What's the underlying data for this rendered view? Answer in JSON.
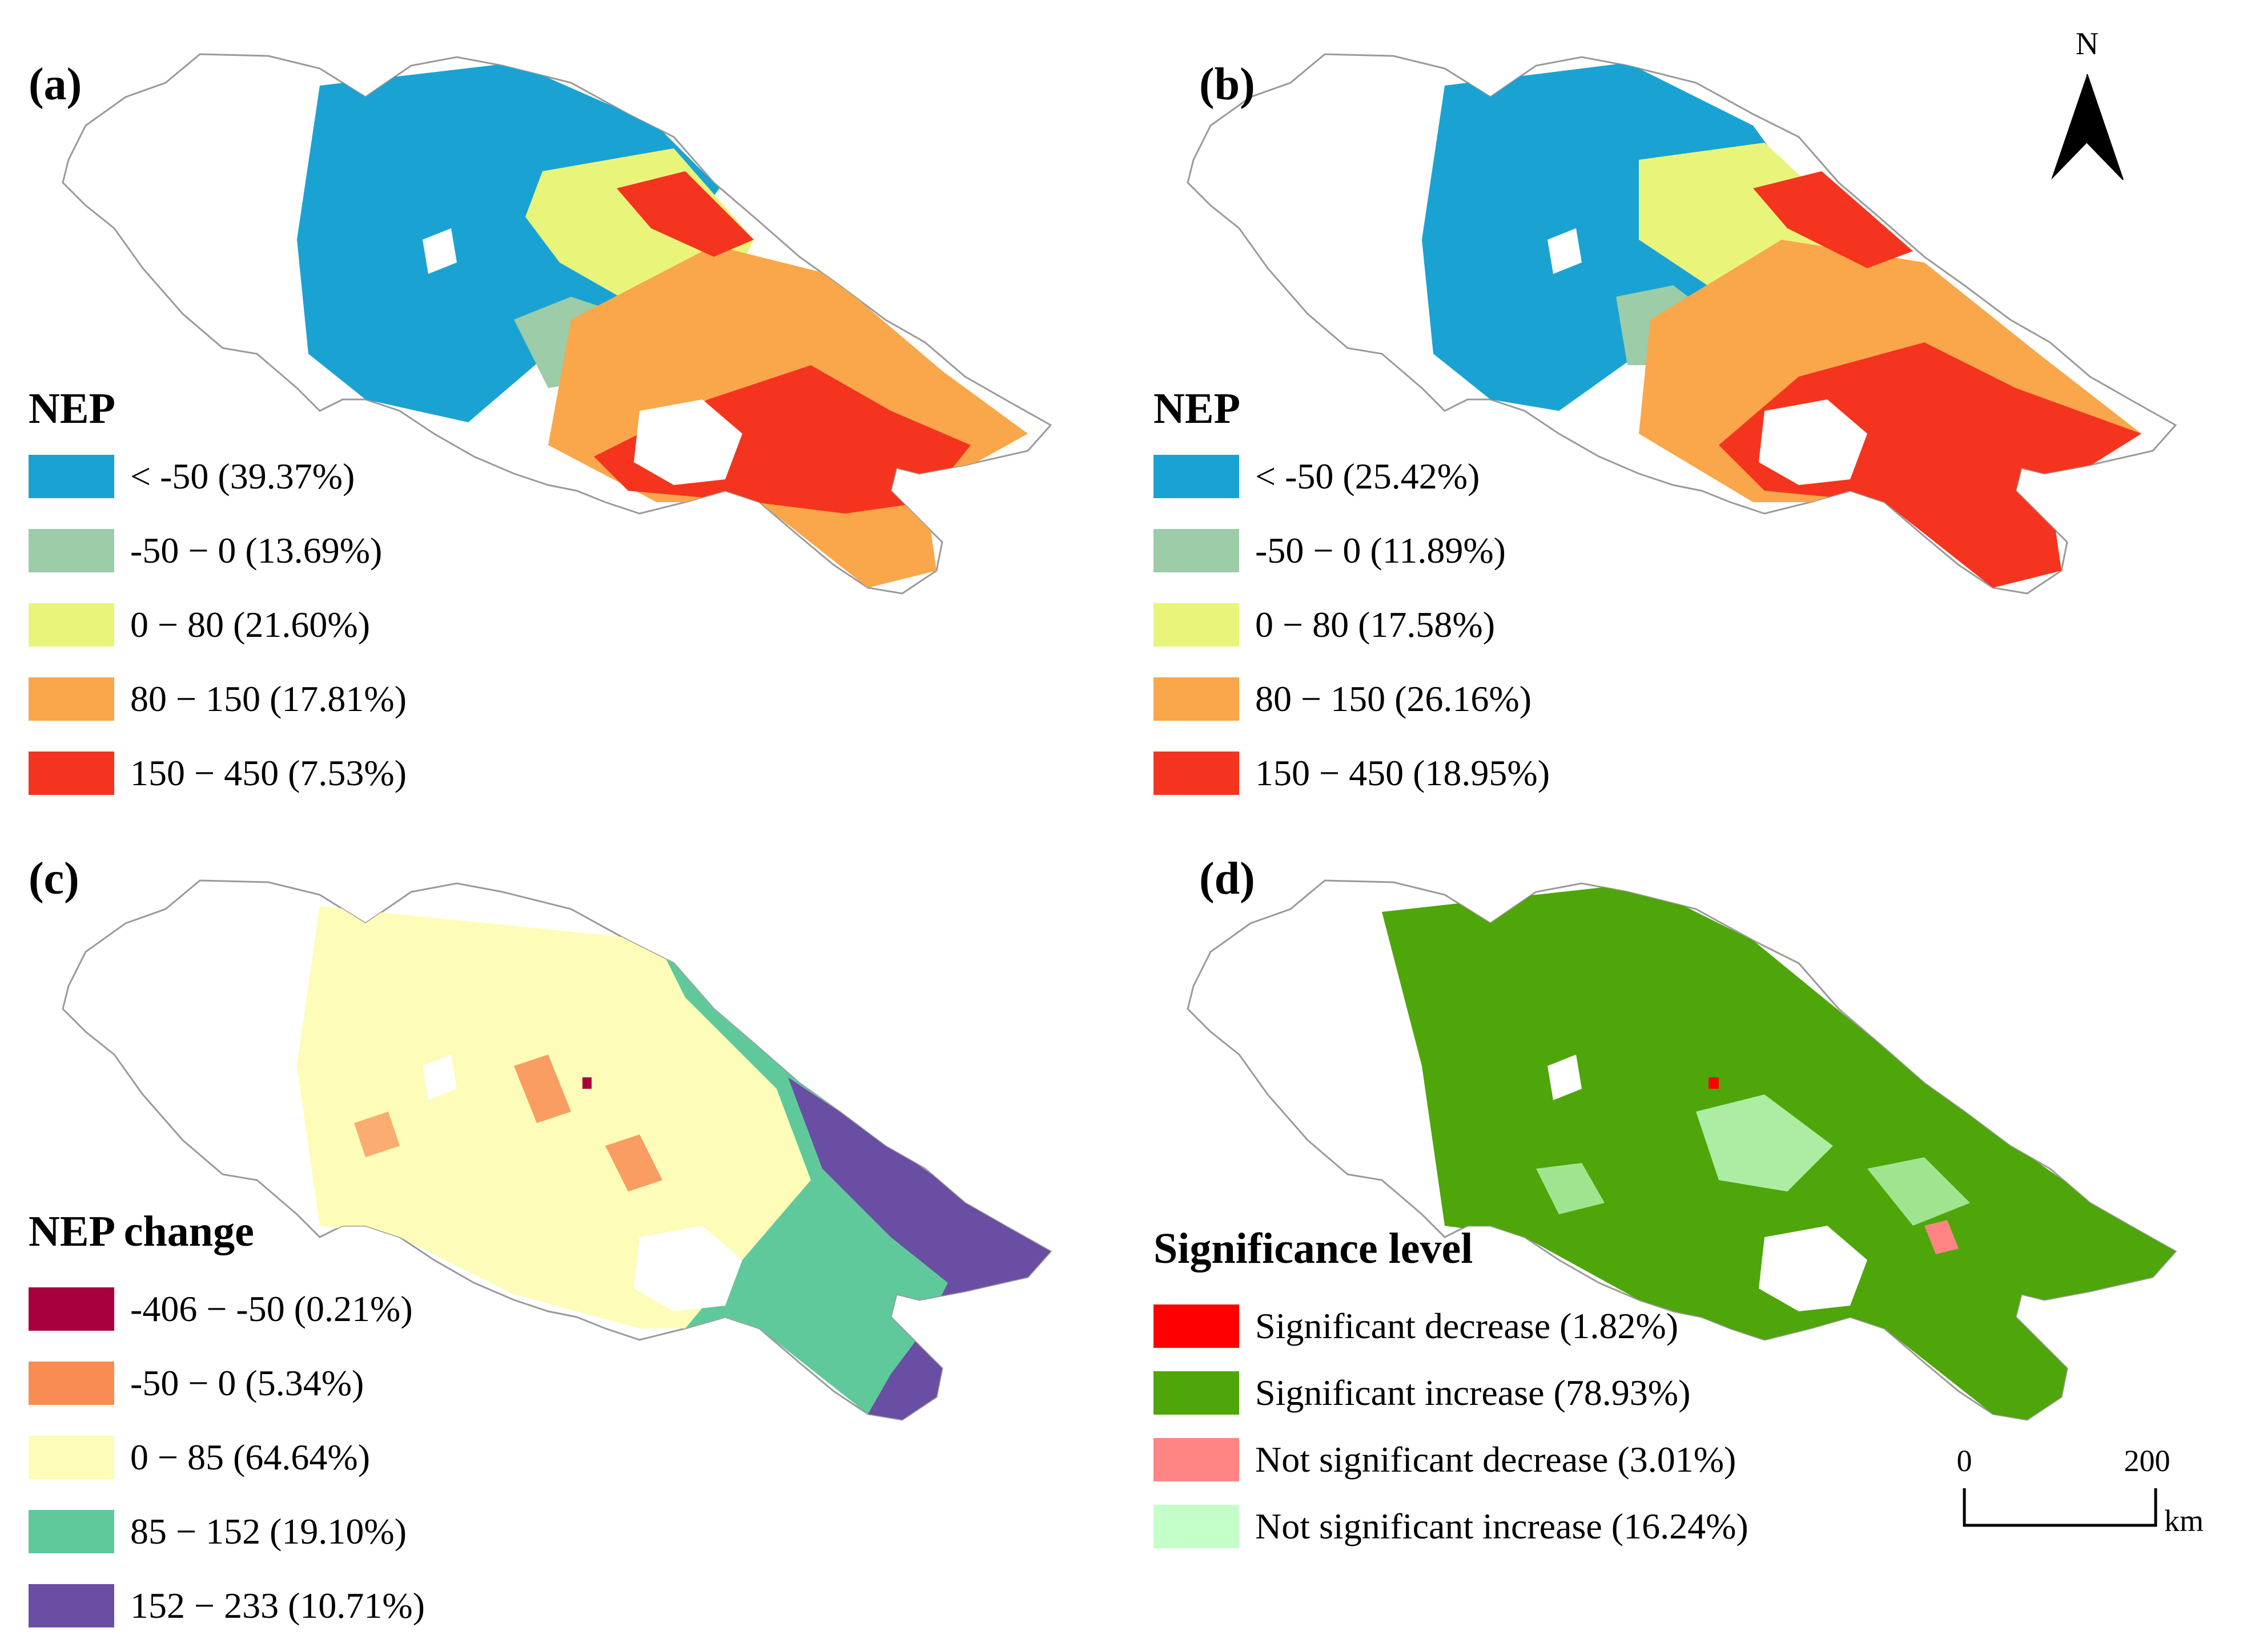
{
  "panels": [
    {
      "label": "(a)",
      "legend_title": "NEP",
      "legend": [
        {
          "text": "< -50 (39.37%)",
          "color": "#1aa3d2"
        },
        {
          "text": "-50 − 0 (13.69%)",
          "color": "#9ccca8"
        },
        {
          "text": "0 − 80 (21.60%)",
          "color": "#e9f57a"
        },
        {
          "text": "80 − 150 (17.81%)",
          "color": "#f9a74a"
        },
        {
          "text": "150 − 450 (7.53%)",
          "color": "#f5341f"
        }
      ]
    },
    {
      "label": "(b)",
      "legend_title": "NEP",
      "legend": [
        {
          "text": "< -50 (25.42%)",
          "color": "#1aa3d2"
        },
        {
          "text": "-50 − 0 (11.89%)",
          "color": "#9ccca8"
        },
        {
          "text": "0 − 80 (17.58%)",
          "color": "#e9f57a"
        },
        {
          "text": "80 − 150 (26.16%)",
          "color": "#f9a74a"
        },
        {
          "text": "150 − 450 (18.95%)",
          "color": "#f5341f"
        }
      ]
    },
    {
      "label": "(c)",
      "legend_title": "NEP change",
      "legend": [
        {
          "text": "-406 − -50 (0.21%)",
          "color": "#a8003f"
        },
        {
          "text": "-50 − 0 (5.34%)",
          "color": "#f98c52"
        },
        {
          "text": "0 − 85 (64.64%)",
          "color": "#fdfcb8"
        },
        {
          "text": "85 − 152 (19.10%)",
          "color": "#5fc99b"
        },
        {
          "text": "152 − 233 (10.71%)",
          "color": "#6a4ea3"
        }
      ]
    },
    {
      "label": "(d)",
      "legend_title": "Significance level",
      "legend": [
        {
          "text": "Significant decrease (1.82%)",
          "color": "#ff0000"
        },
        {
          "text": "Significant increase (78.93%)",
          "color": "#4ea60a"
        },
        {
          "text": "Not significant decrease (3.01%)",
          "color": "#ff8585"
        },
        {
          "text": "Not significant increase (16.24%)",
          "color": "#c4ffc9"
        }
      ]
    }
  ],
  "north_arrow": {
    "label": "N"
  },
  "scale_bar": {
    "start": "0",
    "end": "200",
    "unit": "km"
  }
}
